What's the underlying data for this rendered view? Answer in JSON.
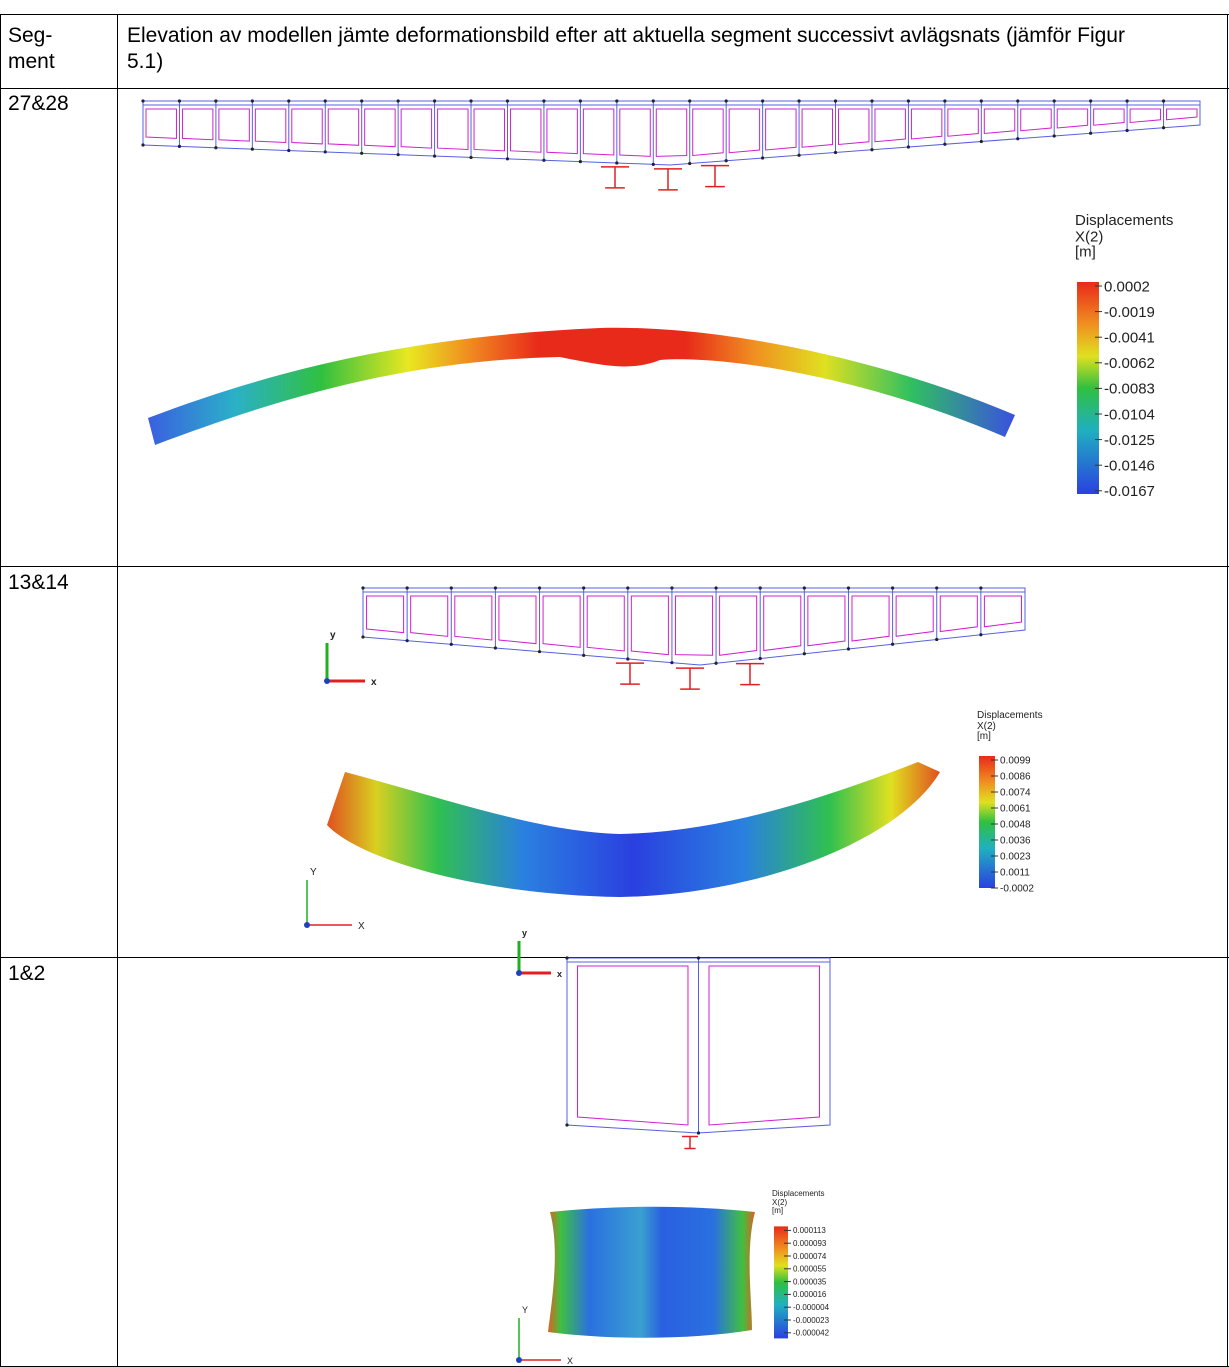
{
  "header": {
    "segment": [
      "Seg-",
      "ment"
    ],
    "description": "Elevation av modellen jämte deformationsbild efter att aktuella segment successivt avlägsnats (jämför Figur 5.1)"
  },
  "rows": [
    {
      "segment": "27&28",
      "legend": {
        "title": "Displacements",
        "component": "X(2)",
        "unit": "[m]",
        "values": [
          "0.0002",
          "-0.0019",
          "-0.0041",
          "-0.0062",
          "-0.0083",
          "-0.0104",
          "-0.0125",
          "-0.0146",
          "-0.0167"
        ]
      }
    },
    {
      "segment": "13&14",
      "axes": {
        "small": [
          "y",
          "x"
        ],
        "large": [
          "Y",
          "X"
        ]
      },
      "legend": {
        "title": "Displacements",
        "component": "X(2)",
        "unit": "[m]",
        "values": [
          "0.0099",
          "0.0086",
          "0.0074",
          "0.0061",
          "0.0048",
          "0.0036",
          "0.0023",
          "0.0011",
          "-0.0002"
        ]
      }
    },
    {
      "segment": "1&2",
      "axes": {
        "small": [
          "y",
          "x"
        ],
        "large": [
          "Y",
          "X"
        ]
      },
      "legend": {
        "title": "Displacements",
        "component": "X(2)",
        "unit": "[m]",
        "values": [
          "0.000113",
          "0.000093",
          "0.000074",
          "0.000055",
          "0.000035",
          "0.000016",
          "-0.000004",
          "-0.000023",
          "-0.000042"
        ]
      }
    }
  ]
}
